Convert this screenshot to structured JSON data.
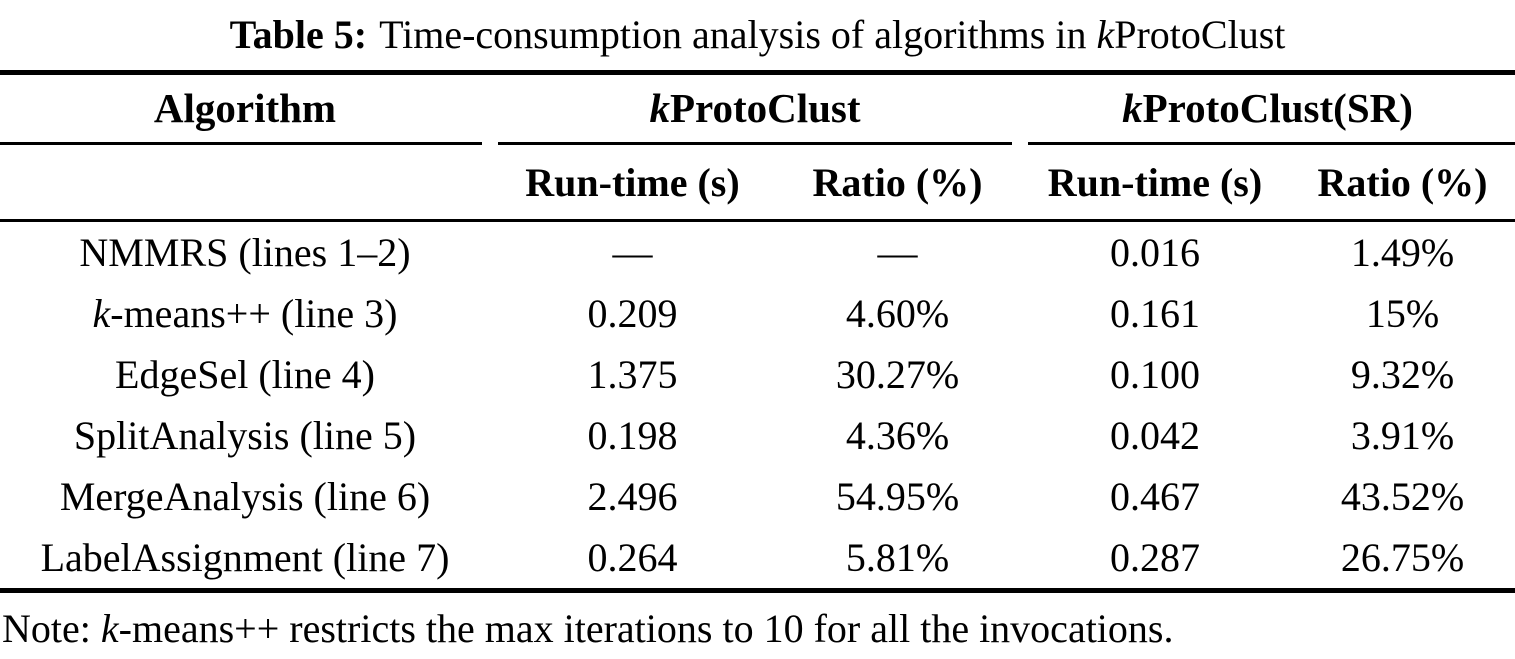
{
  "title": {
    "label": "Table 5:",
    "text": "Time-consumption analysis of algorithms in ",
    "k_italic": "k",
    "k_suffix": "ProtoClust"
  },
  "table": {
    "algorithm_header": "Algorithm",
    "group1": {
      "k_italic": "k",
      "name": "ProtoClust"
    },
    "group2": {
      "k_italic": "k",
      "name": "ProtoClust(SR)"
    },
    "subheaders": {
      "runtime1": "Run-time (s)",
      "ratio1": "Ratio (%)",
      "runtime2": "Run-time (s)",
      "ratio2": "Ratio (%)"
    },
    "rows": [
      {
        "label": "NMMRS (lines 1–2)",
        "runtime1": "—",
        "ratio1": "—",
        "runtime2": "0.016",
        "ratio2": "1.49%"
      },
      {
        "label_italic": "k",
        "label": "-means++ (line 3)",
        "runtime1": "0.209",
        "ratio1": "4.60%",
        "runtime2": "0.161",
        "ratio2": "15%"
      },
      {
        "label": "EdgeSel (line 4)",
        "runtime1": "1.375",
        "ratio1": "30.27%",
        "runtime2": "0.100",
        "ratio2": "9.32%"
      },
      {
        "label": "SplitAnalysis (line 5)",
        "runtime1": "0.198",
        "ratio1": "4.36%",
        "runtime2": "0.042",
        "ratio2": "3.91%"
      },
      {
        "label": "MergeAnalysis (line 6)",
        "runtime1": "2.496",
        "ratio1": "54.95%",
        "runtime2": "0.467",
        "ratio2": "43.52%"
      },
      {
        "label": "LabelAssignment (line 7)",
        "runtime1": "0.264",
        "ratio1": "5.81%",
        "runtime2": "0.287",
        "ratio2": "26.75%"
      }
    ]
  },
  "note": {
    "prefix": "Note: ",
    "k_italic": "k",
    "text": "-means++ restricts the max iterations to 10 for all the invocations."
  },
  "colors": {
    "text": "#000000",
    "background": "#ffffff",
    "rule": "#000000"
  }
}
